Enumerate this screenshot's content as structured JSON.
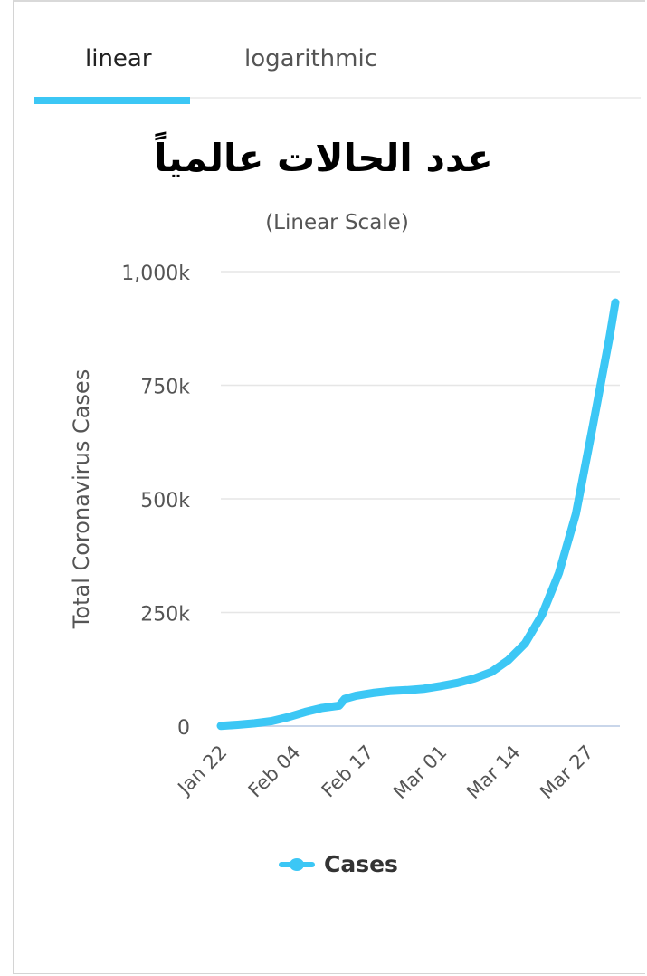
{
  "tabs": [
    {
      "label": "linear",
      "active": true
    },
    {
      "label": "logarithmic",
      "active": false
    }
  ],
  "colors": {
    "accent": "#3cc7f5",
    "grid": "#e6e6e6",
    "axis_text": "#555555"
  },
  "chart_data": {
    "type": "line",
    "title": "عدد الحالات عالمياً",
    "subtitle": "(Linear Scale)",
    "ylabel": "Total Coronavirus Cases",
    "xlabel": "",
    "ylim": [
      0,
      1000000
    ],
    "yticks": [
      0,
      250000,
      500000,
      750000,
      1000000
    ],
    "ytick_labels": [
      "0",
      "250k",
      "500k",
      "750k",
      "1,000k"
    ],
    "xtick_labels": [
      "Jan 22",
      "Feb 04",
      "Feb 17",
      "Mar 01",
      "Mar 14",
      "Mar 27"
    ],
    "grid": true,
    "legend_position": "bottom-center",
    "x": [
      "Jan 22",
      "Jan 25",
      "Jan 28",
      "Jan 31",
      "Feb 03",
      "Feb 06",
      "Feb 09",
      "Feb 12",
      "Feb 13",
      "Feb 15",
      "Feb 18",
      "Feb 21",
      "Feb 24",
      "Feb 27",
      "Mar 01",
      "Mar 04",
      "Mar 07",
      "Mar 10",
      "Mar 13",
      "Mar 16",
      "Mar 19",
      "Mar 22",
      "Mar 25",
      "Mar 28",
      "Mar 31",
      "Apr 01"
    ],
    "series": [
      {
        "name": "Cases",
        "values": [
          555,
          2900,
          6200,
          11000,
          20000,
          31000,
          40000,
          45000,
          60000,
          67000,
          73000,
          77000,
          79000,
          82000,
          88000,
          95000,
          105000,
          119000,
          145000,
          182000,
          245000,
          337000,
          467000,
          660000,
          858000,
          932000
        ]
      }
    ]
  }
}
